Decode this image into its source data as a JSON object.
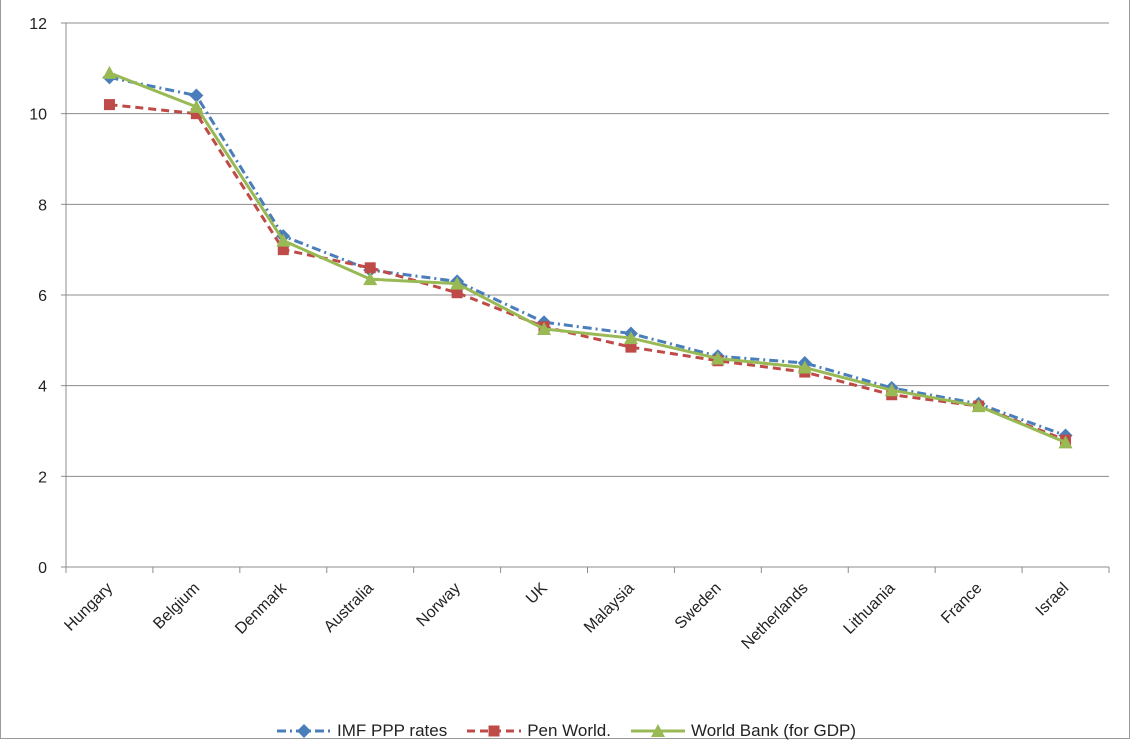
{
  "chart_data": {
    "type": "line",
    "title": "",
    "xlabel": "",
    "ylabel": "",
    "ylim": [
      0,
      12
    ],
    "yticks": [
      0,
      2,
      4,
      6,
      8,
      10,
      12
    ],
    "grid": "horizontal",
    "legend_position": "bottom",
    "categories": [
      "Hungary",
      "Belgium",
      "Denmark",
      "Australia",
      "Norway",
      "UK",
      "Malaysia",
      "Sweden",
      "Netherlands",
      "Lithuania",
      "France",
      "Israel"
    ],
    "series": [
      {
        "name": "IMF PPP rates",
        "color": "#4a7ebb",
        "marker": "diamond",
        "line_style": "dash-dot",
        "values": [
          10.8,
          10.4,
          7.3,
          6.55,
          6.3,
          5.4,
          5.15,
          4.65,
          4.5,
          3.95,
          3.6,
          2.9
        ]
      },
      {
        "name": "Pen World.",
        "color": "#be4b48",
        "marker": "square",
        "line_style": "dashed",
        "values": [
          10.2,
          10.0,
          7.0,
          6.6,
          6.05,
          5.3,
          4.85,
          4.55,
          4.3,
          3.8,
          3.55,
          2.8
        ]
      },
      {
        "name": "World Bank (for GDP)",
        "color": "#98b954",
        "marker": "triangle",
        "line_style": "solid",
        "values": [
          10.9,
          10.15,
          7.2,
          6.35,
          6.25,
          5.25,
          5.05,
          4.6,
          4.4,
          3.9,
          3.55,
          2.75
        ]
      }
    ]
  }
}
